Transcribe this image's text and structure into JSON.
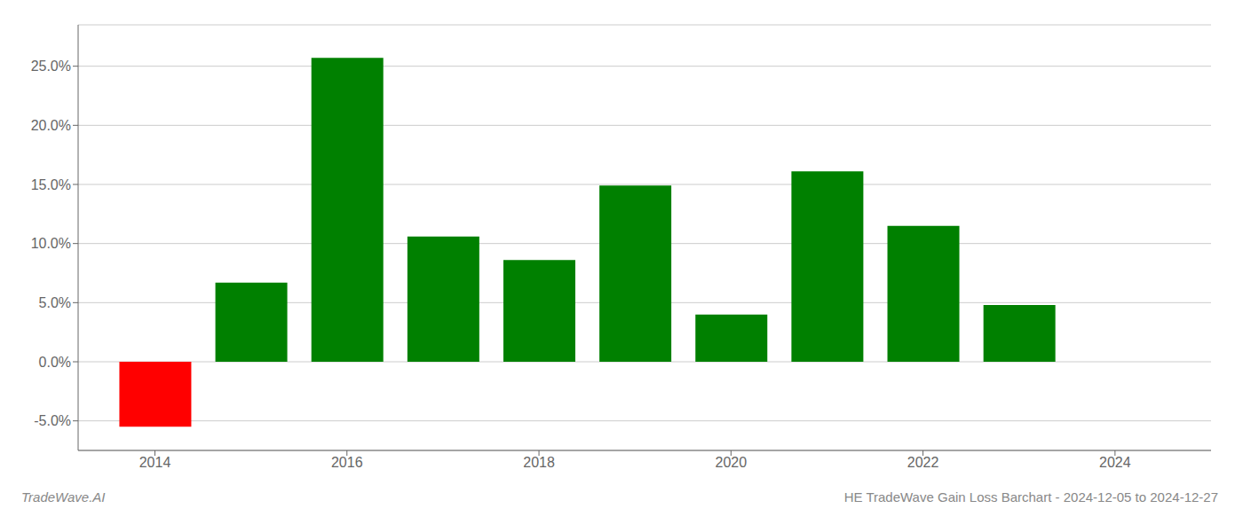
{
  "chart_data": {
    "type": "bar",
    "title": "HE TradeWave Gain Loss Barchart - 2024-12-05 to 2024-12-27",
    "annotations": [
      "TradeWave.AI"
    ],
    "x": [
      2014,
      2015,
      2016,
      2017,
      2018,
      2019,
      2020,
      2021,
      2022,
      2023
    ],
    "values": [
      -0.055,
      0.067,
      0.257,
      0.106,
      0.086,
      0.149,
      0.04,
      0.161,
      0.115,
      0.048
    ],
    "colors": [
      "#ff0000",
      "#008000",
      "#008000",
      "#008000",
      "#008000",
      "#008000",
      "#008000",
      "#008000",
      "#008000",
      "#008000"
    ],
    "xlim": [
      2013.2,
      2025.0
    ],
    "xticks": [
      2014,
      2016,
      2018,
      2020,
      2022,
      2024
    ],
    "ylim": [
      -0.075,
      0.285
    ],
    "yticks": [
      {
        "value": -0.05,
        "label": "-5.0%"
      },
      {
        "value": 0.0,
        "label": "0.0%"
      },
      {
        "value": 0.05,
        "label": "5.0%"
      },
      {
        "value": 0.1,
        "label": "10.0%"
      },
      {
        "value": 0.15,
        "label": "15.0%"
      },
      {
        "value": 0.2,
        "label": "20.0%"
      },
      {
        "value": 0.25,
        "label": "25.0%"
      }
    ],
    "grid": true
  }
}
